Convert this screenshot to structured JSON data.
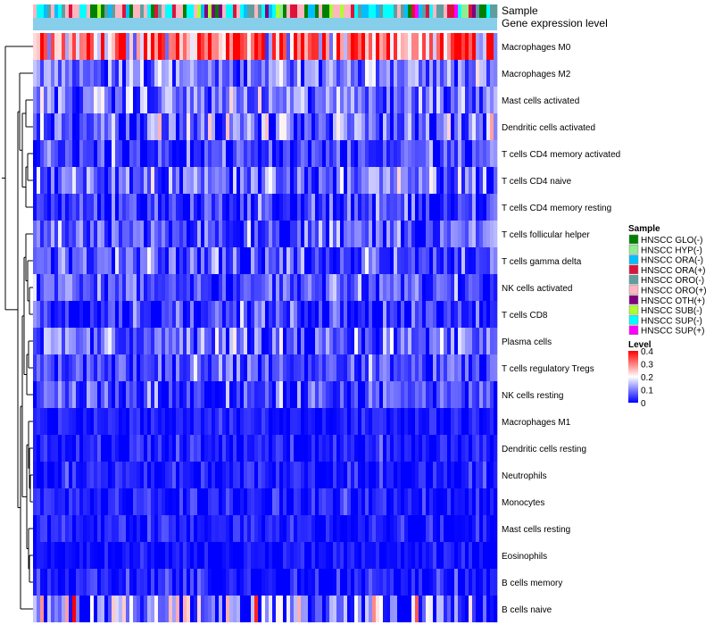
{
  "chart_data": {
    "type": "heatmap",
    "title": "",
    "annotation_tracks": [
      "Sample",
      "Gene expression level"
    ],
    "rows": [
      "Macrophages M0",
      "Macrophages M2",
      "Mast cells activated",
      "Dendritic cells activated",
      "T cells CD4 memory activated",
      "T cells CD4 naive",
      "T cells CD4 memory resting",
      "T cells follicular helper",
      "T cells gamma delta",
      "NK cells activated",
      "T cells CD8",
      "Plasma cells",
      "T cells regulatory  Tregs",
      "NK cells resting",
      "Macrophages M1",
      "Dendritic cells resting",
      "Neutrophils",
      "Monocytes",
      "Mast cells resting",
      "Eosinophils",
      "B cells memory",
      "B cells naive"
    ],
    "row_mean_level": [
      0.3,
      0.1,
      0.09,
      0.09,
      0.05,
      0.08,
      0.04,
      0.07,
      0.06,
      0.06,
      0.05,
      0.08,
      0.05,
      0.05,
      0.02,
      0.02,
      0.02,
      0.02,
      0.02,
      0.01,
      0.02,
      0.1
    ],
    "row_spread": [
      0.12,
      0.06,
      0.06,
      0.07,
      0.05,
      0.07,
      0.05,
      0.06,
      0.06,
      0.05,
      0.05,
      0.06,
      0.05,
      0.05,
      0.02,
      0.03,
      0.03,
      0.03,
      0.03,
      0.02,
      0.03,
      0.12
    ],
    "n_samples": 130,
    "color_scale": {
      "domain": [
        0,
        0.2,
        0.4
      ],
      "colors": [
        "#0000ff",
        "#ffffff",
        "#ff0000"
      ]
    },
    "legend_sample": {
      "title": "Sample",
      "items": [
        {
          "label": "HNSCC GLO(-)",
          "color": "#008000"
        },
        {
          "label": "HNSCC HYP(-)",
          "color": "#90ee90"
        },
        {
          "label": "HNSCC ORA(-)",
          "color": "#00bfff"
        },
        {
          "label": "HNSCC ORA(+)",
          "color": "#dc143c"
        },
        {
          "label": "HNSCC ORO(-)",
          "color": "#5f9ea0"
        },
        {
          "label": "HNSCC ORO(+)",
          "color": "#ffb6c1"
        },
        {
          "label": "HNSCC OTH(+)",
          "color": "#800080"
        },
        {
          "label": "HNSCC SUB(-)",
          "color": "#adff2f"
        },
        {
          "label": "HNSCC SUP(-)",
          "color": "#00ffff"
        },
        {
          "label": "HNSCC SUP(+)",
          "color": "#ff00ff"
        }
      ]
    },
    "legend_level": {
      "title": "Level",
      "ticks": [
        "0.4",
        "0.3",
        "0.2",
        "0.1",
        "0"
      ],
      "tick_values": [
        0.4,
        0.3,
        0.2,
        0.1,
        0
      ]
    },
    "expression_level_color": "#87ceeb"
  }
}
